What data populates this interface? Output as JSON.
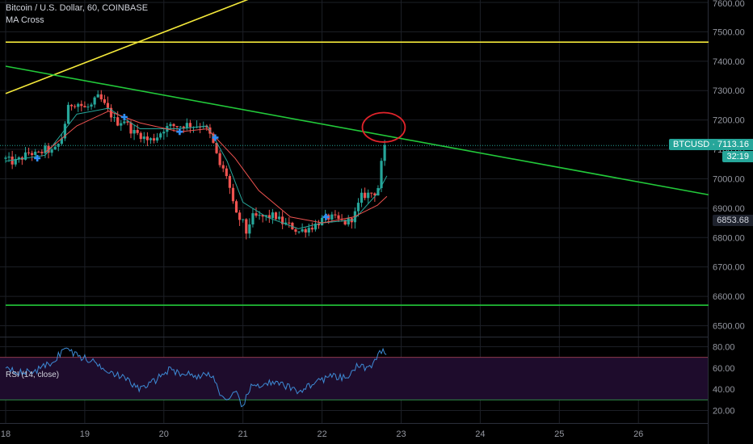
{
  "title": "Bitcoin / U.S. Dollar, 60, COINBASE",
  "indicator": "MA Cross",
  "colors": {
    "background": "#000000",
    "grid": "#1c1f26",
    "up": "#26a69a",
    "down": "#ef5350",
    "ma_fast": "#26a69a",
    "ma_slow": "#ef5350",
    "cross_marker": "#2f8ef5",
    "trend_yellow": "#f3e83a",
    "trend_green": "#22c93a",
    "circle": "#e3242b",
    "rsi_line": "#3d8bd6",
    "rsi_band": "#1e0c2c",
    "rsi_upper": "#8e3a4e",
    "rsi_lower": "#2e8a46",
    "axis_text": "#9598a1"
  },
  "price_labels": {
    "current_symbol": "BTCUSD",
    "current_value": "7113.16",
    "countdown": "32:19",
    "other_value": "6853.68"
  },
  "rsi_title": "RSI (14, close)",
  "chart_data": [
    {
      "type": "candlestick",
      "title": "Bitcoin / U.S. Dollar, 60, COINBASE",
      "x_ticks": [
        "18",
        "19",
        "20",
        "21",
        "22",
        "23",
        "24",
        "25",
        "26"
      ],
      "y_ticks": [
        "7600.00",
        "7500.00",
        "7400.00",
        "7300.00",
        "7200.00",
        "7100.00",
        "7000.00",
        "6900.00",
        "6800.00",
        "6700.00",
        "6600.00",
        "6500.00"
      ],
      "ylim": [
        6450,
        7640
      ],
      "x_days": [
        18,
        19,
        20,
        21,
        22,
        23,
        24,
        25,
        26
      ],
      "close_path": [
        [
          18.0,
          7068
        ],
        [
          18.1,
          7055
        ],
        [
          18.2,
          7070
        ],
        [
          18.3,
          7090
        ],
        [
          18.4,
          7080
        ],
        [
          18.5,
          7100
        ],
        [
          18.6,
          7090
        ],
        [
          18.7,
          7130
        ],
        [
          18.8,
          7250
        ],
        [
          18.9,
          7260
        ],
        [
          19.0,
          7240
        ],
        [
          19.1,
          7250
        ],
        [
          19.15,
          7280
        ],
        [
          19.2,
          7270
        ],
        [
          19.3,
          7230
        ],
        [
          19.4,
          7190
        ],
        [
          19.5,
          7200
        ],
        [
          19.6,
          7160
        ],
        [
          19.7,
          7150
        ],
        [
          19.8,
          7130
        ],
        [
          19.9,
          7140
        ],
        [
          20.0,
          7170
        ],
        [
          20.1,
          7180
        ],
        [
          20.2,
          7180
        ],
        [
          20.3,
          7185
        ],
        [
          20.4,
          7180
        ],
        [
          20.5,
          7185
        ],
        [
          20.6,
          7140
        ],
        [
          20.7,
          7050
        ],
        [
          20.8,
          7010
        ],
        [
          20.9,
          6880
        ],
        [
          21.0,
          6850
        ],
        [
          21.05,
          6810
        ],
        [
          21.1,
          6870
        ],
        [
          21.2,
          6870
        ],
        [
          21.3,
          6870
        ],
        [
          21.4,
          6875
        ],
        [
          21.5,
          6850
        ],
        [
          21.6,
          6840
        ],
        [
          21.7,
          6820
        ],
        [
          21.8,
          6830
        ],
        [
          21.9,
          6840
        ],
        [
          22.0,
          6860
        ],
        [
          22.1,
          6870
        ],
        [
          22.2,
          6860
        ],
        [
          22.3,
          6850
        ],
        [
          22.4,
          6870
        ],
        [
          22.5,
          6940
        ],
        [
          22.6,
          6950
        ],
        [
          22.7,
          6955
        ],
        [
          22.75,
          7050
        ],
        [
          22.8,
          7113
        ]
      ],
      "ma_fast_path": [
        [
          18.0,
          7060
        ],
        [
          18.5,
          7080
        ],
        [
          18.9,
          7220
        ],
        [
          19.3,
          7240
        ],
        [
          19.7,
          7170
        ],
        [
          20.2,
          7170
        ],
        [
          20.55,
          7180
        ],
        [
          20.8,
          7060
        ],
        [
          21.0,
          6920
        ],
        [
          21.3,
          6870
        ],
        [
          21.7,
          6830
        ],
        [
          22.0,
          6850
        ],
        [
          22.4,
          6860
        ],
        [
          22.7,
          6950
        ],
        [
          22.82,
          7010
        ]
      ],
      "ma_slow_path": [
        [
          18.5,
          7090
        ],
        [
          18.9,
          7180
        ],
        [
          19.3,
          7230
        ],
        [
          19.7,
          7190
        ],
        [
          20.2,
          7160
        ],
        [
          20.55,
          7170
        ],
        [
          20.9,
          7070
        ],
        [
          21.2,
          6960
        ],
        [
          21.6,
          6870
        ],
        [
          22.0,
          6850
        ],
        [
          22.4,
          6870
        ],
        [
          22.7,
          6910
        ],
        [
          22.82,
          6940
        ]
      ],
      "cross_markers": [
        [
          18.4,
          7070
        ],
        [
          19.5,
          7210
        ],
        [
          20.2,
          7160
        ],
        [
          20.65,
          7140
        ],
        [
          22.05,
          6870
        ]
      ],
      "trend_lines": [
        {
          "color_key": "trend_yellow",
          "points": [
            [
              18.0,
              7290
            ],
            [
              21.35,
              7640
            ]
          ]
        },
        {
          "color_key": "trend_yellow",
          "points": [
            [
              18.0,
              7465
            ],
            [
              26.9,
              7465
            ]
          ]
        },
        {
          "color_key": "trend_green",
          "points": [
            [
              18.0,
              7383
            ],
            [
              26.9,
              6945
            ]
          ]
        },
        {
          "color_key": "trend_green",
          "points": [
            [
              18.0,
              6570
            ],
            [
              26.9,
              6570
            ]
          ]
        }
      ],
      "highlight_circle": {
        "center": [
          22.78,
          7175
        ],
        "radius_units": {
          "dx_days": 0.27,
          "dy_price": 50
        }
      }
    },
    {
      "type": "line",
      "title": "RSI (14, close)",
      "y_ticks": [
        "80.00",
        "60.00",
        "40.00",
        "20.00"
      ],
      "ylim": [
        12,
        85
      ],
      "band": [
        30,
        70
      ],
      "path": [
        [
          18.0,
          62
        ],
        [
          18.2,
          55
        ],
        [
          18.4,
          58
        ],
        [
          18.6,
          66
        ],
        [
          18.75,
          79
        ],
        [
          18.9,
          72
        ],
        [
          19.1,
          66
        ],
        [
          19.3,
          58
        ],
        [
          19.5,
          50
        ],
        [
          19.7,
          40
        ],
        [
          19.85,
          46
        ],
        [
          20.05,
          58
        ],
        [
          20.25,
          55
        ],
        [
          20.45,
          52
        ],
        [
          20.6,
          55
        ],
        [
          20.7,
          38
        ],
        [
          20.8,
          26
        ],
        [
          20.9,
          37
        ],
        [
          21.0,
          24
        ],
        [
          21.1,
          42
        ],
        [
          21.3,
          46
        ],
        [
          21.5,
          44
        ],
        [
          21.7,
          38
        ],
        [
          21.9,
          46
        ],
        [
          22.1,
          52
        ],
        [
          22.3,
          50
        ],
        [
          22.45,
          62
        ],
        [
          22.6,
          60
        ],
        [
          22.68,
          66
        ],
        [
          22.73,
          74
        ],
        [
          22.82,
          76
        ]
      ]
    }
  ]
}
